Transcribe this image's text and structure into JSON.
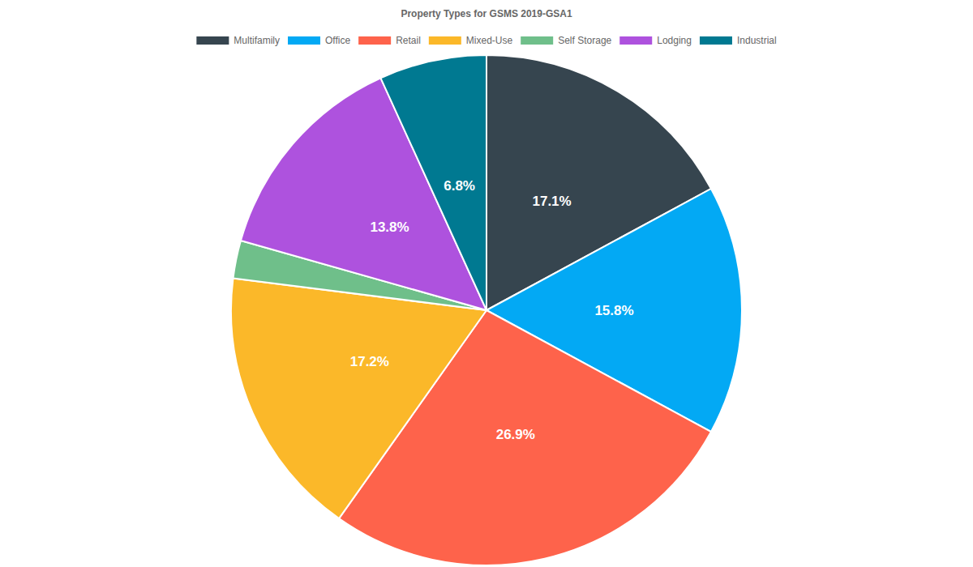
{
  "chart_data": {
    "type": "pie",
    "title": "Property Types for GSMS 2019-GSA1",
    "categories": [
      "Multifamily",
      "Office",
      "Retail",
      "Mixed-Use",
      "Self Storage",
      "Lodging",
      "Industrial"
    ],
    "values": [
      17.1,
      15.8,
      26.9,
      17.2,
      2.4,
      13.8,
      6.8
    ],
    "value_labels": [
      "17.1%",
      "15.8%",
      "26.9%",
      "17.2%",
      null,
      "13.8%",
      "6.8%"
    ],
    "colors": [
      "#36454f",
      "#03a9f4",
      "#fe634b",
      "#fbb829",
      "#6fbf8a",
      "#ae52de",
      "#007991"
    ],
    "data_labels": true,
    "legend": "top"
  }
}
